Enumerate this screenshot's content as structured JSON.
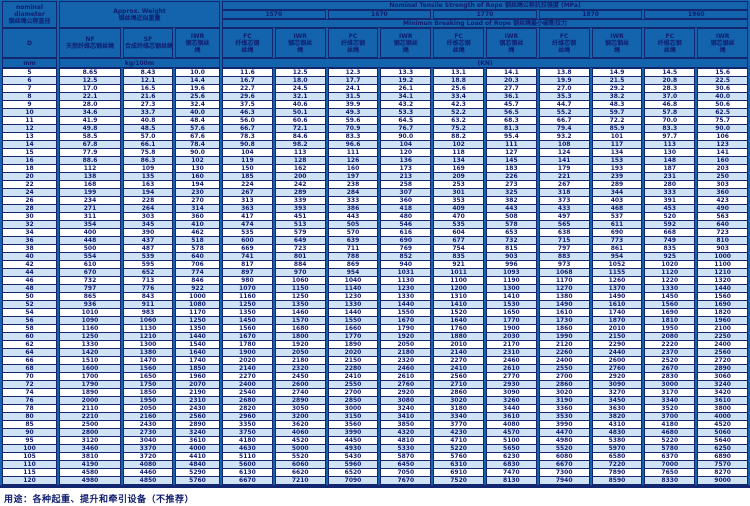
{
  "colors": {
    "table_blue": "#1463ad",
    "ink_navy": "#101d6e",
    "stripe_lightblue": "#cfe3f5",
    "grid_line": "#12276f",
    "row_white": "#ffffff"
  },
  "table": {
    "diameter_header": {
      "en1": "nominal",
      "en2": "diameter",
      "zh": "钢丝绳公称直径"
    },
    "weight_header": {
      "en": "Approx. Weight",
      "zh": "钢丝绳近似重量"
    },
    "tensile_header": {
      "en": "Nominal Tensile Strength of Rope",
      "zh": "钢丝绳公称抗拉强度",
      "unit": "(MPa)"
    },
    "breaking_header": {
      "en": "Minimun Breaking Load of Rope",
      "zh": "钢丝绳最小破断拉力"
    },
    "strengths": [
      "1570",
      "1670",
      "1770",
      "1870",
      "1960"
    ],
    "col_d": "D",
    "col_nf": {
      "code": "NF",
      "zh": "天然纤维芯钢丝绳"
    },
    "col_sf": {
      "code": "SF",
      "zh": "合成纤维芯钢丝绳"
    },
    "col_iwr": {
      "code": "IWR",
      "zh": "钢芯钢丝绳"
    },
    "col_fc": {
      "code": "FC",
      "zh": "纤维芯钢丝绳"
    },
    "unit_mm": "mm",
    "unit_kg": "kg/100m",
    "unit_kn": "(KN)",
    "rows": [
      [
        "5",
        "8.65",
        "8.43",
        "10.0",
        "11.6",
        "12.5",
        "12.3",
        "13.3",
        "13.1",
        "14.1",
        "13.8",
        "14.9",
        "14.5",
        "15.6"
      ],
      [
        "6",
        "12.5",
        "12.1",
        "14.4",
        "16.7",
        "18.0",
        "17.7",
        "19.2",
        "18.8",
        "20.3",
        "19.9",
        "21.5",
        "20.8",
        "22.5"
      ],
      [
        "7",
        "17.0",
        "16.5",
        "19.6",
        "22.7",
        "24.5",
        "24.1",
        "26.1",
        "25.6",
        "27.7",
        "27.0",
        "29.2",
        "28.3",
        "30.6"
      ],
      [
        "8",
        "22.1",
        "21.6",
        "25.6",
        "29.6",
        "32.1",
        "31.5",
        "34.1",
        "33.4",
        "36.1",
        "35.3",
        "38.2",
        "37.0",
        "40.0"
      ],
      [
        "9",
        "28.0",
        "27.3",
        "32.4",
        "37.5",
        "40.6",
        "39.9",
        "43.2",
        "42.3",
        "45.7",
        "44.7",
        "48.3",
        "46.8",
        "50.6"
      ],
      [
        "10",
        "34.6",
        "33.7",
        "40.0",
        "46.3",
        "50.1",
        "49.3",
        "53.3",
        "52.2",
        "56.5",
        "55.2",
        "59.7",
        "57.8",
        "62.5"
      ],
      [
        "11",
        "41.9",
        "40.8",
        "48.4",
        "56.0",
        "60.6",
        "59.6",
        "64.5",
        "63.2",
        "68.3",
        "66.7",
        "72.2",
        "70.0",
        "75.7"
      ],
      [
        "12",
        "49.8",
        "48.5",
        "57.6",
        "66.7",
        "72.1",
        "70.9",
        "76.7",
        "75.2",
        "81.3",
        "79.4",
        "85.9",
        "83.3",
        "90.0"
      ],
      [
        "13",
        "58.5",
        "57.0",
        "67.6",
        "78.3",
        "84.6",
        "83.3",
        "90.0",
        "88.2",
        "95.4",
        "93.2",
        "101",
        "97.7",
        "106"
      ],
      [
        "14",
        "67.8",
        "66.1",
        "78.4",
        "90.8",
        "98.2",
        "96.6",
        "104",
        "102",
        "111",
        "108",
        "117",
        "113",
        "123"
      ],
      [
        "15",
        "77.9",
        "75.8",
        "90.0",
        "104",
        "113",
        "111",
        "120",
        "118",
        "127",
        "124",
        "134",
        "130",
        "141"
      ],
      [
        "16",
        "88.6",
        "86.3",
        "102",
        "119",
        "128",
        "126",
        "136",
        "134",
        "145",
        "141",
        "153",
        "148",
        "160"
      ],
      [
        "18",
        "112",
        "109",
        "130",
        "150",
        "162",
        "160",
        "173",
        "169",
        "183",
        "179",
        "193",
        "187",
        "203"
      ],
      [
        "20",
        "138",
        "135",
        "160",
        "185",
        "200",
        "197",
        "213",
        "209",
        "226",
        "221",
        "239",
        "231",
        "250"
      ],
      [
        "22",
        "168",
        "163",
        "194",
        "224",
        "242",
        "238",
        "258",
        "253",
        "273",
        "267",
        "289",
        "280",
        "303"
      ],
      [
        "24",
        "199",
        "194",
        "230",
        "267",
        "289",
        "284",
        "307",
        "301",
        "325",
        "318",
        "344",
        "333",
        "360"
      ],
      [
        "26",
        "234",
        "228",
        "270",
        "313",
        "339",
        "333",
        "360",
        "353",
        "382",
        "373",
        "403",
        "391",
        "423"
      ],
      [
        "28",
        "271",
        "264",
        "314",
        "363",
        "393",
        "386",
        "418",
        "409",
        "443",
        "433",
        "468",
        "453",
        "490"
      ],
      [
        "30",
        "311",
        "303",
        "360",
        "417",
        "451",
        "443",
        "480",
        "470",
        "508",
        "497",
        "537",
        "520",
        "563"
      ],
      [
        "32",
        "354",
        "345",
        "410",
        "474",
        "513",
        "505",
        "546",
        "535",
        "578",
        "565",
        "611",
        "592",
        "640"
      ],
      [
        "34",
        "400",
        "390",
        "462",
        "535",
        "579",
        "570",
        "616",
        "604",
        "653",
        "638",
        "690",
        "668",
        "723"
      ],
      [
        "36",
        "448",
        "437",
        "518",
        "600",
        "649",
        "639",
        "690",
        "677",
        "732",
        "715",
        "773",
        "749",
        "810"
      ],
      [
        "38",
        "500",
        "487",
        "578",
        "669",
        "723",
        "711",
        "769",
        "754",
        "815",
        "797",
        "861",
        "835",
        "903"
      ],
      [
        "40",
        "554",
        "539",
        "640",
        "741",
        "801",
        "788",
        "852",
        "835",
        "903",
        "883",
        "954",
        "925",
        "1000"
      ],
      [
        "42",
        "610",
        "595",
        "706",
        "817",
        "884",
        "869",
        "940",
        "921",
        "996",
        "973",
        "1052",
        "1020",
        "1100"
      ],
      [
        "44",
        "670",
        "652",
        "774",
        "897",
        "970",
        "954",
        "1031",
        "1011",
        "1093",
        "1068",
        "1155",
        "1120",
        "1210"
      ],
      [
        "46",
        "732",
        "713",
        "846",
        "980",
        "1060",
        "1040",
        "1130",
        "1100",
        "1190",
        "1170",
        "1260",
        "1220",
        "1320"
      ],
      [
        "48",
        "797",
        "776",
        "922",
        "1070",
        "1150",
        "1140",
        "1230",
        "1200",
        "1300",
        "1270",
        "1370",
        "1330",
        "1440"
      ],
      [
        "50",
        "865",
        "843",
        "1000",
        "1160",
        "1250",
        "1230",
        "1330",
        "1310",
        "1410",
        "1380",
        "1490",
        "1450",
        "1560"
      ],
      [
        "52",
        "936",
        "911",
        "1080",
        "1250",
        "1350",
        "1330",
        "1440",
        "1410",
        "1530",
        "1490",
        "1610",
        "1560",
        "1690"
      ],
      [
        "54",
        "1010",
        "983",
        "1170",
        "1350",
        "1460",
        "1440",
        "1550",
        "1520",
        "1650",
        "1610",
        "1740",
        "1690",
        "1820"
      ],
      [
        "56",
        "1090",
        "1060",
        "1250",
        "1450",
        "1570",
        "1550",
        "1670",
        "1640",
        "1770",
        "1730",
        "1870",
        "1810",
        "1960"
      ],
      [
        "58",
        "1160",
        "1130",
        "1350",
        "1560",
        "1680",
        "1660",
        "1790",
        "1760",
        "1900",
        "1860",
        "2010",
        "1950",
        "2100"
      ],
      [
        "60",
        "1250",
        "1210",
        "1440",
        "1670",
        "1800",
        "1770",
        "1920",
        "1880",
        "2030",
        "1990",
        "2150",
        "2080",
        "2250"
      ],
      [
        "62",
        "1330",
        "1300",
        "1540",
        "1780",
        "1920",
        "1890",
        "2050",
        "2010",
        "2170",
        "2120",
        "2290",
        "2220",
        "2400"
      ],
      [
        "64",
        "1420",
        "1380",
        "1640",
        "1900",
        "2050",
        "2020",
        "2180",
        "2140",
        "2310",
        "2260",
        "2440",
        "2370",
        "2560"
      ],
      [
        "66",
        "1510",
        "1470",
        "1740",
        "2020",
        "2180",
        "2150",
        "2320",
        "2270",
        "2460",
        "2400",
        "2600",
        "2520",
        "2720"
      ],
      [
        "68",
        "1600",
        "1560",
        "1850",
        "2140",
        "2320",
        "2280",
        "2460",
        "2410",
        "2610",
        "2550",
        "2760",
        "2670",
        "2890"
      ],
      [
        "70",
        "1700",
        "1650",
        "1960",
        "2270",
        "2450",
        "2410",
        "2610",
        "2560",
        "2770",
        "2700",
        "2920",
        "2830",
        "3060"
      ],
      [
        "72",
        "1790",
        "1750",
        "2070",
        "2400",
        "2600",
        "2550",
        "2760",
        "2710",
        "2930",
        "2860",
        "3090",
        "3000",
        "3240"
      ],
      [
        "74",
        "1890",
        "1850",
        "2190",
        "2540",
        "2740",
        "2700",
        "2920",
        "2860",
        "3090",
        "3020",
        "3270",
        "3170",
        "3420"
      ],
      [
        "76",
        "2000",
        "1950",
        "2310",
        "2680",
        "2890",
        "2850",
        "3080",
        "3020",
        "3260",
        "3190",
        "3450",
        "3340",
        "3610"
      ],
      [
        "78",
        "2110",
        "2050",
        "2430",
        "2820",
        "3050",
        "3000",
        "3240",
        "3180",
        "3440",
        "3360",
        "3630",
        "3520",
        "3800"
      ],
      [
        "80",
        "2210",
        "2160",
        "2560",
        "2960",
        "3200",
        "3150",
        "3410",
        "3340",
        "3610",
        "3530",
        "3820",
        "3700",
        "4000"
      ],
      [
        "85",
        "2500",
        "2430",
        "2890",
        "3350",
        "3620",
        "3560",
        "3850",
        "3770",
        "4080",
        "3990",
        "4310",
        "4180",
        "4520"
      ],
      [
        "90",
        "2800",
        "2730",
        "3240",
        "3750",
        "4060",
        "3990",
        "4320",
        "4230",
        "4570",
        "4470",
        "4830",
        "4680",
        "5060"
      ],
      [
        "95",
        "3120",
        "3040",
        "3610",
        "4180",
        "4520",
        "4450",
        "4810",
        "4710",
        "5100",
        "4980",
        "5380",
        "5220",
        "5640"
      ],
      [
        "100",
        "3460",
        "3370",
        "4000",
        "4630",
        "5000",
        "4930",
        "5330",
        "5220",
        "5650",
        "5520",
        "5970",
        "5780",
        "6250"
      ],
      [
        "105",
        "3810",
        "3720",
        "4410",
        "5110",
        "5520",
        "5430",
        "5870",
        "5760",
        "6230",
        "6080",
        "6580",
        "6370",
        "6890"
      ],
      [
        "110",
        "4190",
        "4080",
        "4840",
        "5600",
        "6060",
        "5960",
        "6450",
        "6310",
        "6830",
        "6670",
        "7220",
        "7000",
        "7570"
      ],
      [
        "115",
        "4580",
        "4460",
        "5290",
        "6130",
        "6620",
        "6520",
        "7050",
        "6910",
        "7470",
        "7300",
        "7890",
        "7650",
        "8270"
      ],
      [
        "120",
        "4980",
        "4850",
        "5760",
        "6670",
        "7210",
        "7090",
        "7670",
        "7520",
        "8130",
        "7940",
        "8590",
        "8330",
        "9000"
      ]
    ]
  },
  "footer": {
    "usage": "用途：各种起重、提升和牵引设备（不推荐）"
  }
}
